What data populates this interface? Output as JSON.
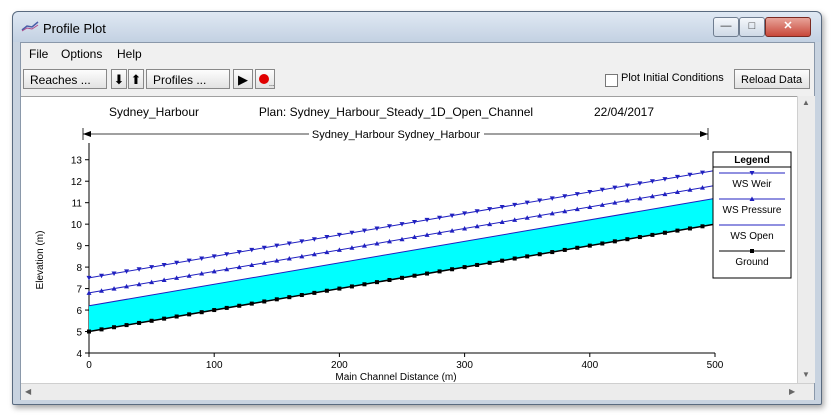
{
  "window": {
    "title": "Profile Plot"
  },
  "menu": {
    "items": [
      "File",
      "Options",
      "Help"
    ]
  },
  "toolbar": {
    "reaches_label": "Reaches ...",
    "profiles_label": "Profiles ...",
    "down_arrow": "⬇",
    "up_arrow": "⬆",
    "play": "▶",
    "plot_initial_label": "Plot Initial Conditions",
    "plot_initial_checked": false,
    "reload_label": "Reload Data"
  },
  "chart_data": {
    "type": "line",
    "header": {
      "project": "Sydney_Harbour",
      "plan": "Plan: Sydney_Harbour_Steady_1D_Open_Channel",
      "date": "22/04/2017"
    },
    "reach_label": "Sydney_Harbour Sydney_Harbour",
    "xlabel": "Main Channel Distance (m)",
    "ylabel": "Elevation (m)",
    "xlim": [
      0,
      500
    ],
    "ylim": [
      4,
      13.5
    ],
    "xticks": [
      0,
      100,
      200,
      300,
      400,
      500
    ],
    "yticks": [
      4,
      5,
      6,
      7,
      8,
      9,
      10,
      11,
      12,
      13
    ],
    "legend_title": "Legend",
    "legend_placement": "right",
    "series": [
      {
        "name": "WS  Weir",
        "x": [
          0,
          500
        ],
        "y": [
          7.5,
          12.5
        ],
        "color": "#2020c0",
        "marker": "triangle-down"
      },
      {
        "name": "WS  Pressure",
        "x": [
          0,
          500
        ],
        "y": [
          6.8,
          11.8
        ],
        "color": "#2020c0",
        "marker": "triangle-up"
      },
      {
        "name": "WS  Open",
        "x": [
          0,
          500
        ],
        "y": [
          6.2,
          11.2
        ],
        "color": "#2020c0",
        "marker": "none",
        "fill": "#00ffff"
      },
      {
        "name": "Ground",
        "x": [
          0,
          500
        ],
        "y": [
          5.0,
          10.0
        ],
        "color": "#000000",
        "marker": "square"
      }
    ]
  }
}
